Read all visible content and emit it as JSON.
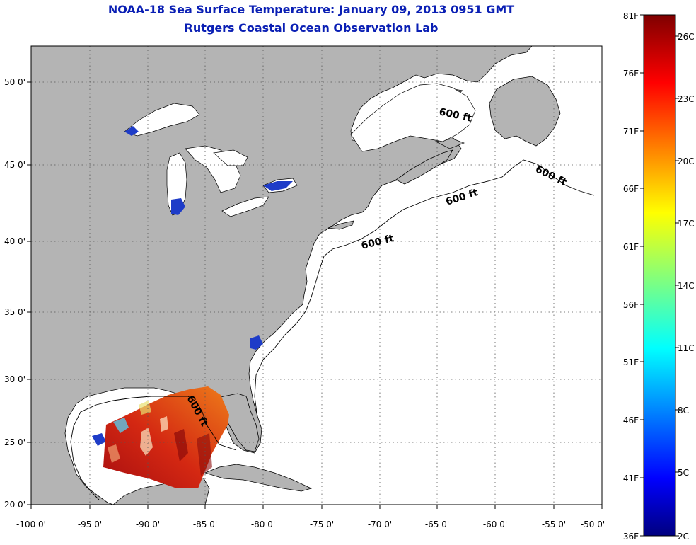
{
  "header": {
    "title": "NOAA-18 Sea Surface Temperature:  January 09, 2013 0951 GMT",
    "subtitle": "Rutgers Coastal Ocean Observation Lab"
  },
  "map": {
    "lon_labels": [
      "-100 0'",
      "-95 0'",
      "-90 0'",
      "-85 0'",
      "-80 0'",
      "-75 0'",
      "-70 0'",
      "-65 0'",
      "-60 0'",
      "-55 0'",
      "-50 0'"
    ],
    "lat_labels": [
      "20 0'",
      "25 0'",
      "30 0'",
      "35 0'",
      "40 0'",
      "45 0'",
      "50 0'"
    ],
    "depth_labels": [
      "600 ft",
      "600 ft",
      "600 ft",
      "600 ft",
      "600 ft"
    ]
  },
  "colorbar": {
    "f_labels": [
      "81F",
      "76F",
      "71F",
      "66F",
      "61F",
      "56F",
      "51F",
      "46F",
      "41F",
      "36F"
    ],
    "c_labels": [
      "26C",
      "23C",
      "20C",
      "17C",
      "14C",
      "11C",
      "8C",
      "5C",
      "2C"
    ]
  },
  "colors": {
    "title": "#0a1fb4",
    "land": "#b4b4b4",
    "ocean": "#ffffff",
    "warm": "#c8160f",
    "cold": "#1e3cc8"
  }
}
